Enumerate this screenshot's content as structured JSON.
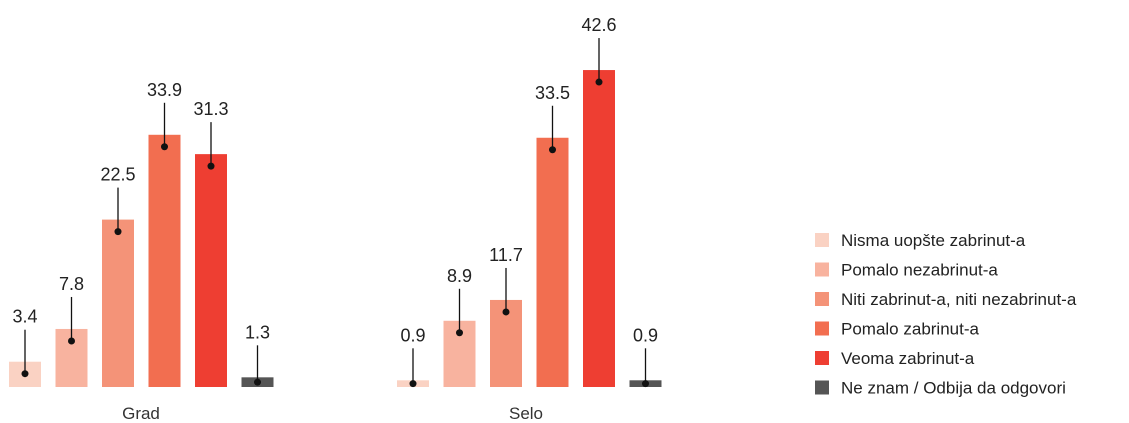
{
  "chart_data": {
    "type": "bar",
    "title": "",
    "xlabel": "",
    "ylabel": "",
    "ylim": [
      0,
      42.6
    ],
    "grid": false,
    "legend_position": "right",
    "categories": [
      "Grad",
      "Selo"
    ],
    "series": [
      {
        "name": "Nisma uopšte zabrinut-a",
        "color": "#fad2c3",
        "values": [
          3.4,
          0.9
        ]
      },
      {
        "name": "Pomalo nezabrinut-a",
        "color": "#f8b39f",
        "values": [
          7.8,
          8.9
        ]
      },
      {
        "name": "Niti zabrinut-a, niti nezabrinut-a",
        "color": "#f49378",
        "values": [
          22.5,
          11.7
        ]
      },
      {
        "name": "Pomalo zabrinut-a",
        "color": "#f26e50",
        "values": [
          33.9,
          33.5
        ]
      },
      {
        "name": "Veoma zabrinut-a",
        "color": "#ee3e32",
        "values": [
          31.3,
          42.6
        ]
      },
      {
        "name": "Ne znam / Odbija da odgovori",
        "color": "#555555",
        "values": [
          1.3,
          0.9
        ]
      }
    ],
    "data_labels": [
      [
        "3.4",
        "7.8",
        "22.5",
        "33.9",
        "31.3",
        "1.3"
      ],
      [
        "0.9",
        "8.9",
        "11.7",
        "33.5",
        "42.6",
        "0.9"
      ]
    ]
  }
}
